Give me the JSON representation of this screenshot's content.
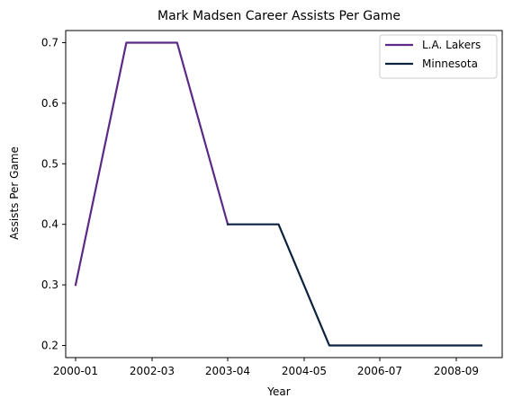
{
  "chart_data": {
    "type": "line",
    "title": "Mark Madsen Career Assists Per Game",
    "xlabel": "Year",
    "ylabel": "Assists Per Game",
    "x_ticks": [
      "2000-01",
      "2002-03",
      "2003-04",
      "2004-05",
      "2006-07",
      "2008-09"
    ],
    "y_ticks": [
      "0.2",
      "0.3",
      "0.4",
      "0.5",
      "0.6",
      "0.7"
    ],
    "ylim": [
      0.18,
      0.72
    ],
    "grid": false,
    "legend_position": "top-right",
    "series": [
      {
        "name": "L.A. Lakers",
        "color": "#5b2a86",
        "x": [
          "2000-01",
          "2001-02",
          "2002-03",
          "2003-04"
        ],
        "values": [
          0.3,
          0.7,
          0.7,
          0.4
        ]
      },
      {
        "name": "Minnesota",
        "color": "#0c2340",
        "x": [
          "2003-04",
          "2004-05",
          "2005-06",
          "2006-07",
          "2007-08",
          "2008-09"
        ],
        "values": [
          0.4,
          0.4,
          0.2,
          0.2,
          0.2,
          0.2
        ]
      }
    ]
  }
}
